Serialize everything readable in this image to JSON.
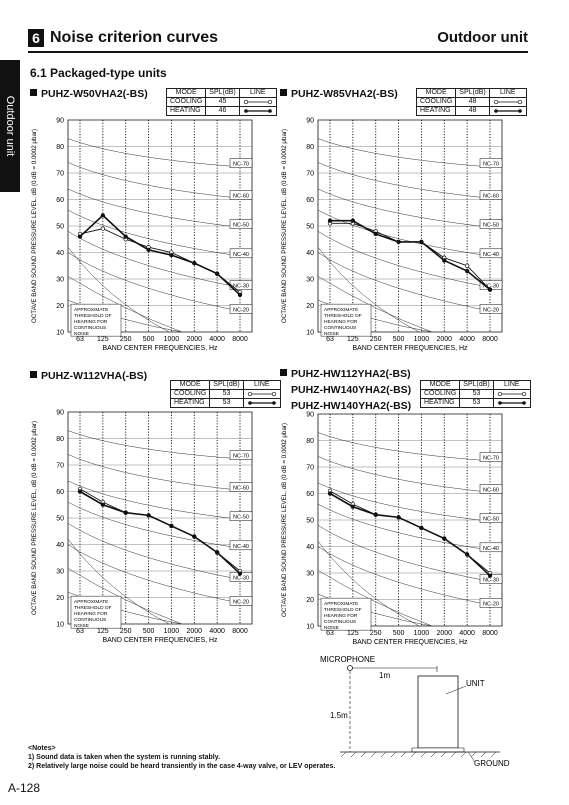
{
  "header": {
    "section_number": "6",
    "section_title": "Noise criterion curves",
    "right_title": "Outdoor unit",
    "side_tab": "Outdoor unit"
  },
  "subsection": "6.1 Packaged-type units",
  "table_headers": {
    "mode": "MODE",
    "spl": "SPL(dB)",
    "line": "LINE"
  },
  "chart_common": {
    "ylabel": "OCTAVE BAND SOUND PRESSURE LEVEL, dB (0 dB = 0.0002 μbar)",
    "xlabel": "BAND CENTER FREQUENCIES, Hz",
    "x_ticks": [
      "63",
      "125",
      "250",
      "500",
      "1000",
      "2000",
      "4000",
      "8000"
    ],
    "y_ticks": [
      "90",
      "80",
      "70",
      "60",
      "50",
      "40",
      "30",
      "20",
      "10"
    ],
    "nc_labels": [
      "NC-70",
      "NC-60",
      "NC-50",
      "NC-40",
      "NC-30",
      "NC-20"
    ],
    "threshold_note": [
      "APPROXIMATE",
      "THRESHOLD OF",
      "HEARING FOR",
      "CONTINUOUS",
      "NOISE"
    ]
  },
  "chart_data": [
    {
      "type": "line",
      "model": "PUHZ-W50VHA2(-BS)",
      "xlabel": "BAND CENTER FREQUENCIES, Hz",
      "ylim": [
        10,
        90
      ],
      "categories": [
        "63",
        "125",
        "250",
        "500",
        "1000",
        "2000",
        "4000",
        "8000"
      ],
      "rows": [
        {
          "mode": "COOLING",
          "spl": "45",
          "style": "open"
        },
        {
          "mode": "HEATING",
          "spl": "46",
          "style": "filled"
        }
      ],
      "series": [
        {
          "name": "COOLING",
          "values": [
            47,
            49,
            45,
            42,
            40,
            36,
            32,
            25
          ]
        },
        {
          "name": "HEATING",
          "values": [
            46,
            54,
            46,
            41,
            39,
            36,
            32,
            24
          ]
        }
      ]
    },
    {
      "type": "line",
      "model": "PUHZ-W85VHA2(-BS)",
      "xlabel": "BAND CENTER FREQUENCIES, Hz",
      "ylim": [
        10,
        90
      ],
      "categories": [
        "63",
        "125",
        "250",
        "500",
        "1000",
        "2000",
        "4000",
        "8000"
      ],
      "rows": [
        {
          "mode": "COOLING",
          "spl": "48",
          "style": "open"
        },
        {
          "mode": "HEATING",
          "spl": "48",
          "style": "filled"
        }
      ],
      "series": [
        {
          "name": "COOLING",
          "values": [
            51,
            51,
            48,
            44,
            44,
            38,
            35,
            26
          ]
        },
        {
          "name": "HEATING",
          "values": [
            52,
            52,
            47,
            44,
            44,
            37,
            33,
            26
          ]
        }
      ]
    },
    {
      "type": "line",
      "model": "PUHZ-W112VHA(-BS)",
      "xlabel": "BAND CENTER FREQUENCIES, Hz",
      "ylim": [
        10,
        90
      ],
      "categories": [
        "63",
        "125",
        "250",
        "500",
        "1000",
        "2000",
        "4000",
        "8000"
      ],
      "rows": [
        {
          "mode": "COOLING",
          "spl": "53",
          "style": "open"
        },
        {
          "mode": "HEATING",
          "spl": "53",
          "style": "filled"
        }
      ],
      "series": [
        {
          "name": "COOLING",
          "values": [
            61,
            56,
            52,
            51,
            47,
            43,
            37,
            30
          ]
        },
        {
          "name": "HEATING",
          "values": [
            60,
            55,
            52,
            51,
            47,
            43,
            37,
            29
          ]
        }
      ]
    },
    {
      "type": "line",
      "models": [
        "PUHZ-HW112YHA2(-BS)",
        "PUHZ-HW140YHA2(-BS)",
        "PUHZ-HW140YHA2(-BS)"
      ],
      "xlabel": "BAND CENTER FREQUENCIES, Hz",
      "ylim": [
        10,
        90
      ],
      "categories": [
        "63",
        "125",
        "250",
        "500",
        "1000",
        "2000",
        "4000",
        "8000"
      ],
      "rows": [
        {
          "mode": "COOLING",
          "spl": "53",
          "style": "open"
        },
        {
          "mode": "HEATING",
          "spl": "53",
          "style": "filled"
        }
      ],
      "series": [
        {
          "name": "COOLING",
          "values": [
            61,
            56,
            52,
            51,
            47,
            43,
            37,
            30
          ]
        },
        {
          "name": "HEATING",
          "values": [
            60,
            55,
            52,
            51,
            47,
            43,
            37,
            29
          ]
        }
      ]
    }
  ],
  "diagram": {
    "microphone": "MICROPHONE",
    "unit": "UNIT",
    "dist_h": "1m",
    "dist_v": "1.5m",
    "ground": "GROUND"
  },
  "notes": {
    "title": "<Notes>",
    "items": [
      "1) Sound data is taken when the system is running stably.",
      "2) Relatively large noise could be heard transiently in the case 4-way valve, or LEV operates."
    ]
  },
  "page_number": "A-128"
}
